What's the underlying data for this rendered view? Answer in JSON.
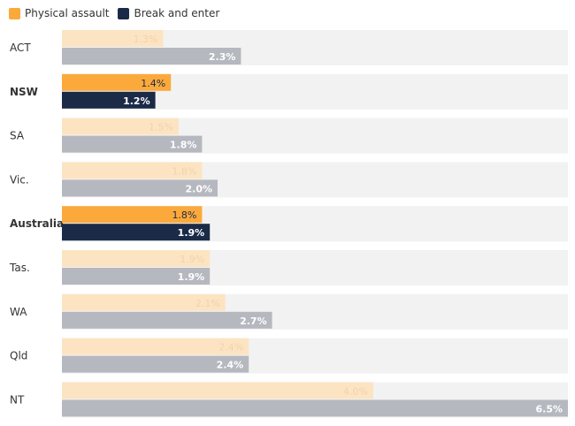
{
  "legend": [
    {
      "label": "Physical assault",
      "color": "#FCA93B"
    },
    {
      "label": "Break and enter",
      "color": "#1B2A47"
    }
  ],
  "colors": {
    "assault_highlight": "#FCA93B",
    "break_highlight": "#1B2A47",
    "assault_muted": "#FCE4C3",
    "break_muted": "#B6B8C0",
    "row_background": "#F2F2F2",
    "assault_muted_label": "#F0D3AA",
    "highlight_label": "#1B2A47",
    "light_label": "#FFFFFF"
  },
  "chart_data": {
    "type": "bar",
    "orientation": "horizontal",
    "categories": [
      "ACT",
      "NSW",
      "SA",
      "Vic.",
      "Australia",
      "Tas.",
      "WA",
      "Qld",
      "NT"
    ],
    "highlighted": [
      "NSW",
      "Australia"
    ],
    "series": [
      {
        "name": "Physical assault",
        "values": [
          1.3,
          1.4,
          1.5,
          1.8,
          1.8,
          1.9,
          2.1,
          2.4,
          4.0
        ],
        "labels": [
          "1.3%",
          "1.4%",
          "1.5%",
          "1.8%",
          "1.8%",
          "1.9%",
          "2.1%",
          "2.4%",
          "4.0%"
        ]
      },
      {
        "name": "Break and enter",
        "values": [
          2.3,
          1.2,
          1.8,
          2.0,
          1.9,
          1.9,
          2.7,
          2.4,
          6.5
        ],
        "labels": [
          "2.3%",
          "1.2%",
          "1.8%",
          "2.0%",
          "1.9%",
          "1.9%",
          "2.7%",
          "2.4%",
          "6.5%"
        ]
      }
    ],
    "xlim": [
      0,
      6.5
    ],
    "grid": false,
    "legend_position": "top-left"
  }
}
